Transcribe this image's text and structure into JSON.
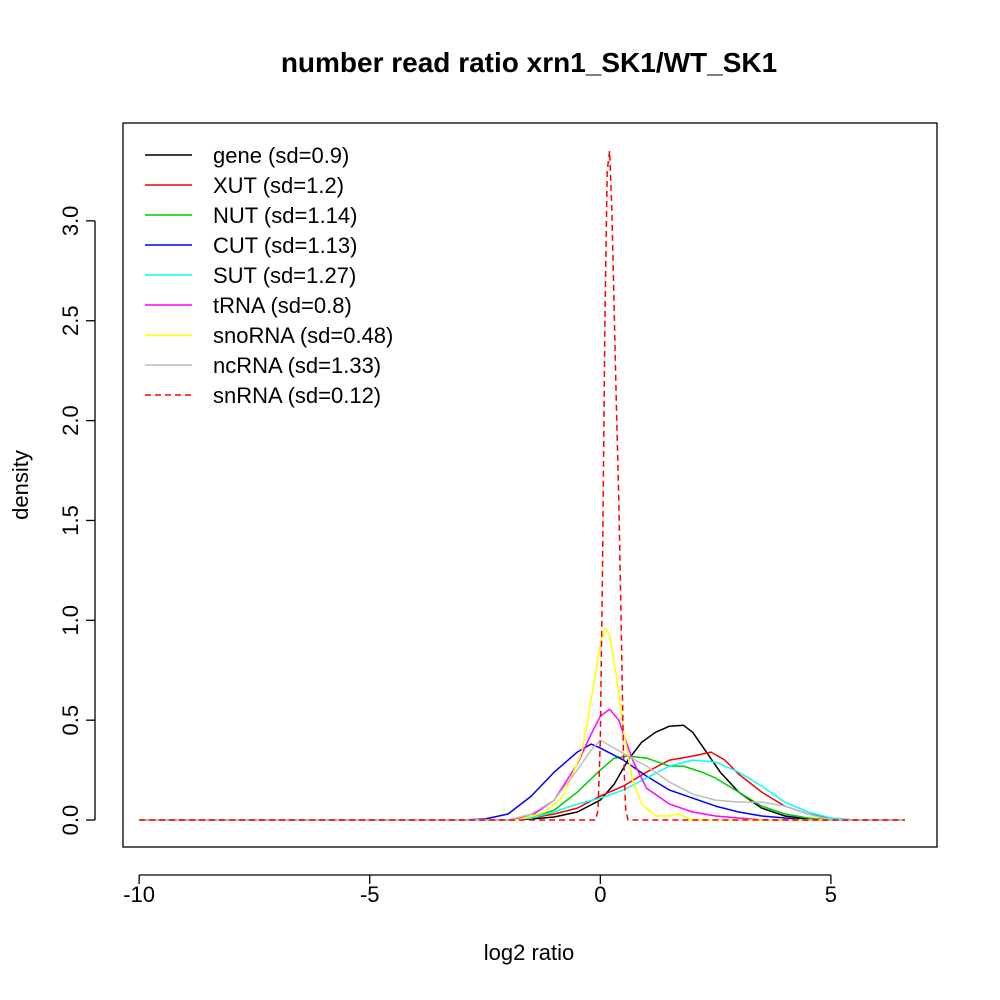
{
  "chart_data": {
    "type": "line",
    "title": "number read ratio xrn1_SK1/WT_SK1",
    "xlabel": "log2 ratio",
    "ylabel": "density",
    "xlim": [
      -10.35,
      7.3
    ],
    "ylim": [
      -0.135,
      3.49
    ],
    "xticks": [
      -10,
      -5,
      0,
      5
    ],
    "xtick_labels": [
      "-10",
      "-5",
      "0",
      "5"
    ],
    "yticks": [
      0.0,
      0.5,
      1.0,
      1.5,
      2.0,
      2.5,
      3.0
    ],
    "ytick_labels": [
      "0.0",
      "0.5",
      "1.0",
      "1.5",
      "2.0",
      "2.5",
      "3.0"
    ],
    "grid": false,
    "legend_position": "top-left",
    "series": [
      {
        "name": "gene (sd=0.9)",
        "color": "#000000",
        "dash": "solid",
        "x": [
          -10.0,
          -2.0,
          -1.5,
          -1.0,
          -0.5,
          0.0,
          0.3,
          0.6,
          0.9,
          1.2,
          1.5,
          1.8,
          2.0,
          2.3,
          2.6,
          3.0,
          3.5,
          4.0,
          4.5,
          5.0,
          6.6
        ],
        "y": [
          0.0,
          0.0,
          0.005,
          0.015,
          0.04,
          0.1,
          0.18,
          0.3,
          0.39,
          0.44,
          0.47,
          0.475,
          0.44,
          0.34,
          0.24,
          0.14,
          0.06,
          0.02,
          0.005,
          0.0,
          0.0
        ]
      },
      {
        "name": "XUT (sd=1.2)",
        "color": "#ff0000",
        "dash": "solid",
        "x": [
          -10.0,
          -2.0,
          -1.5,
          -1.0,
          -0.5,
          0.0,
          0.5,
          1.0,
          1.5,
          2.0,
          2.4,
          2.7,
          3.0,
          3.5,
          4.0,
          4.5,
          5.0,
          5.5,
          6.6
        ],
        "y": [
          0.0,
          0.0,
          0.01,
          0.03,
          0.06,
          0.12,
          0.17,
          0.24,
          0.3,
          0.32,
          0.34,
          0.3,
          0.23,
          0.14,
          0.07,
          0.03,
          0.01,
          0.0,
          0.0
        ]
      },
      {
        "name": "NUT (sd=1.14)",
        "color": "#00cd00",
        "dash": "solid",
        "x": [
          -10.0,
          -2.0,
          -1.5,
          -1.0,
          -0.5,
          0.0,
          0.3,
          0.6,
          1.0,
          1.5,
          1.8,
          2.2,
          2.5,
          3.0,
          3.5,
          4.0,
          4.5,
          5.0,
          6.6
        ],
        "y": [
          0.0,
          0.0,
          0.01,
          0.05,
          0.14,
          0.25,
          0.31,
          0.32,
          0.31,
          0.27,
          0.27,
          0.24,
          0.21,
          0.14,
          0.07,
          0.03,
          0.01,
          0.0,
          0.0
        ]
      },
      {
        "name": "CUT (sd=1.13)",
        "color": "#0000ff",
        "dash": "solid",
        "x": [
          -10.0,
          -3.0,
          -2.5,
          -2.0,
          -1.5,
          -1.0,
          -0.5,
          -0.2,
          0.0,
          0.5,
          1.0,
          1.5,
          2.0,
          2.5,
          3.0,
          3.5,
          4.0,
          4.5,
          6.6
        ],
        "y": [
          0.0,
          0.0,
          0.005,
          0.03,
          0.12,
          0.24,
          0.34,
          0.38,
          0.36,
          0.3,
          0.22,
          0.15,
          0.11,
          0.07,
          0.04,
          0.02,
          0.01,
          0.0,
          0.0
        ]
      },
      {
        "name": "SUT (sd=1.27)",
        "color": "#00ffff",
        "dash": "solid",
        "x": [
          -10.0,
          -2.0,
          -1.5,
          -1.0,
          -0.5,
          0.0,
          0.5,
          1.0,
          1.5,
          2.0,
          2.5,
          3.0,
          3.5,
          4.0,
          4.5,
          5.0,
          5.5,
          6.6
        ],
        "y": [
          0.0,
          0.0,
          0.01,
          0.04,
          0.08,
          0.11,
          0.15,
          0.21,
          0.27,
          0.3,
          0.29,
          0.24,
          0.17,
          0.09,
          0.04,
          0.01,
          0.0,
          0.0
        ]
      },
      {
        "name": "tRNA (sd=0.8)",
        "color": "#ff00ff",
        "dash": "solid",
        "x": [
          -10.0,
          -2.0,
          -1.5,
          -1.0,
          -0.5,
          -0.2,
          0.0,
          0.2,
          0.4,
          0.7,
          1.0,
          1.5,
          2.0,
          2.5,
          3.0,
          3.5,
          4.0,
          6.6
        ],
        "y": [
          0.0,
          0.0,
          0.02,
          0.1,
          0.28,
          0.43,
          0.52,
          0.555,
          0.5,
          0.3,
          0.16,
          0.08,
          0.04,
          0.02,
          0.01,
          0.0,
          0.0,
          0.0
        ]
      },
      {
        "name": "snoRNA (sd=0.48)",
        "color": "#ffff00",
        "dash": "solid",
        "x": [
          -10.0,
          -1.8,
          -1.2,
          -0.8,
          -0.4,
          -0.2,
          0.0,
          0.1,
          0.2,
          0.35,
          0.5,
          0.7,
          0.9,
          1.2,
          1.5,
          1.7,
          2.0,
          6.6
        ],
        "y": [
          0.0,
          0.0,
          0.04,
          0.12,
          0.34,
          0.6,
          0.88,
          0.96,
          0.93,
          0.72,
          0.45,
          0.2,
          0.08,
          0.02,
          0.02,
          0.03,
          0.0,
          0.0
        ]
      },
      {
        "name": "ncRNA (sd=1.33)",
        "color": "#bebebe",
        "dash": "solid",
        "x": [
          -10.0,
          -2.0,
          -1.5,
          -1.0,
          -0.5,
          -0.2,
          0.0,
          0.3,
          0.6,
          1.0,
          1.5,
          2.0,
          2.5,
          3.0,
          3.5,
          4.0,
          4.5,
          5.0,
          6.6
        ],
        "y": [
          0.0,
          0.0,
          0.03,
          0.1,
          0.25,
          0.35,
          0.4,
          0.36,
          0.32,
          0.27,
          0.19,
          0.13,
          0.1,
          0.09,
          0.09,
          0.07,
          0.03,
          0.0,
          0.0
        ]
      },
      {
        "name": "snRNA (sd=0.12)",
        "color": "#ff0000",
        "dash": "dashed",
        "x": [
          -10.0,
          -0.1,
          -0.05,
          0.0,
          0.05,
          0.1,
          0.15,
          0.2,
          0.25,
          0.3,
          0.35,
          0.4,
          0.45,
          0.5,
          0.55,
          0.6,
          6.6
        ],
        "y": [
          0.0,
          0.0,
          0.05,
          0.4,
          1.3,
          2.5,
          3.25,
          3.35,
          3.05,
          2.55,
          2.05,
          1.6,
          1.0,
          0.35,
          0.05,
          0.0,
          0.0
        ]
      }
    ]
  }
}
